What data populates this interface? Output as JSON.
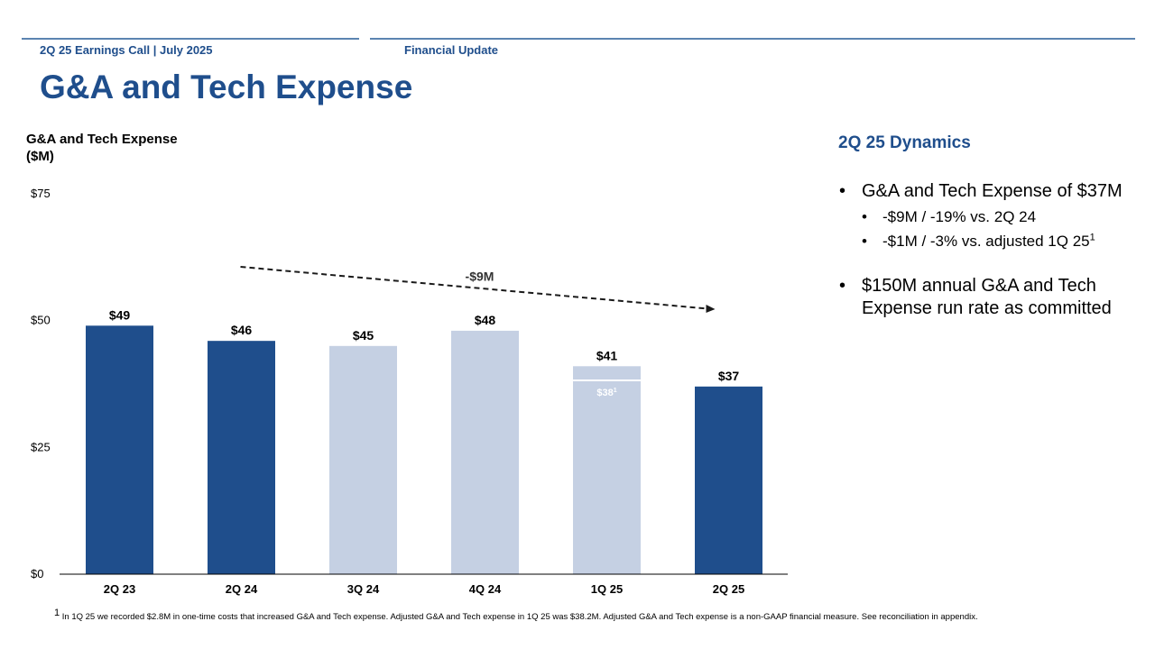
{
  "header": {
    "left": "2Q 25 Earnings Call | July 2025",
    "right": "Financial Update"
  },
  "title": "G&A and Tech Expense",
  "chart_label_line1": "G&A and Tech Expense",
  "chart_label_line2": "($M)",
  "sidebar": {
    "title": "2Q 25 Dynamics",
    "bullet1": "G&A and Tech Expense of $37M",
    "sub1": "-$9M / -19% vs. 2Q 24",
    "sub2": "-$1M / -3% vs. adjusted 1Q 25",
    "sub2_sup": "1",
    "bullet2": "$150M annual G&A and Tech Expense run rate as committed"
  },
  "footnote": {
    "sup": "1",
    "text": " In 1Q 25 we recorded $2.8M in one-time costs that increased G&A and Tech expense. Adjusted G&A and Tech expense in 1Q 25 was $38.2M. Adjusted G&A and Tech expense is a non-GAAP financial measure. See reconciliation in appendix."
  },
  "colors": {
    "dark": "#1f4e8c",
    "light": "#c5d0e3",
    "title": "#1f4e8c"
  },
  "chart_data": {
    "type": "bar",
    "title": "G&A and Tech Expense ($M)",
    "categories": [
      "2Q 23",
      "2Q 24",
      "3Q 24",
      "4Q 24",
      "1Q 25",
      "2Q 25"
    ],
    "values": [
      49,
      46,
      45,
      48,
      41,
      37
    ],
    "value_labels": [
      "$49",
      "$46",
      "$45",
      "$48",
      "$41",
      "$37"
    ],
    "highlight": [
      true,
      true,
      false,
      false,
      false,
      true
    ],
    "yticks": [
      0,
      25,
      50,
      75
    ],
    "ytick_labels": [
      "$0",
      "$25",
      "$50",
      "$75"
    ],
    "ylim": [
      0,
      75
    ],
    "adjusted": {
      "category": "1Q 25",
      "value": 38.2,
      "label": "$38",
      "label_sup": "1"
    },
    "trend_annotation": {
      "label": "-$9M",
      "from": "2Q 24",
      "to": "2Q 25"
    }
  }
}
